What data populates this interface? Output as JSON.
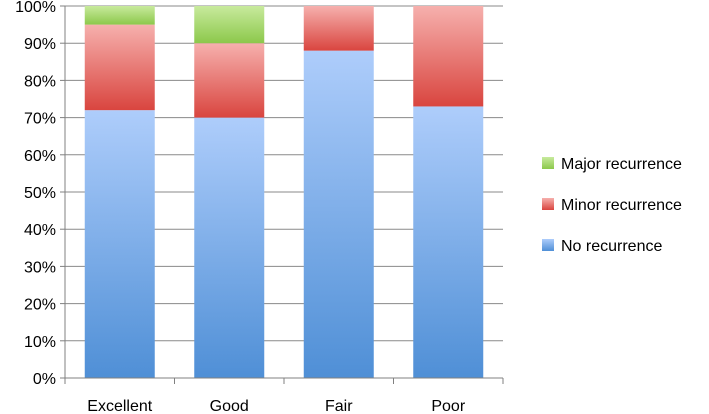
{
  "colors": {
    "axis": "#808080",
    "grid": "#8a8a8a",
    "no_recurrence_top": "#aecdfb",
    "no_recurrence_bottom": "#4f8fd6",
    "minor_recurrence_top": "#f6b0ad",
    "minor_recurrence_bottom": "#d9453f",
    "major_recurrence_top": "#c8ea9d",
    "major_recurrence_bottom": "#8cc84b"
  },
  "chart_data": {
    "type": "bar",
    "stacked": true,
    "percent_stacked": true,
    "title": "",
    "xlabel": "",
    "ylabel": "",
    "categories": [
      "Excellent",
      "Good",
      "Fair",
      "Poor"
    ],
    "series": [
      {
        "name": "No recurrence",
        "values": [
          72,
          70,
          88,
          73
        ]
      },
      {
        "name": "Minor recurrence",
        "values": [
          23,
          20,
          12,
          27
        ]
      },
      {
        "name": "Major recurrence",
        "values": [
          5,
          10,
          0,
          0
        ]
      }
    ],
    "ylim": [
      0,
      100
    ],
    "yticks": [
      "0%",
      "10%",
      "20%",
      "30%",
      "40%",
      "50%",
      "60%",
      "70%",
      "80%",
      "90%",
      "100%"
    ],
    "grid": true,
    "legend_position": "right"
  }
}
